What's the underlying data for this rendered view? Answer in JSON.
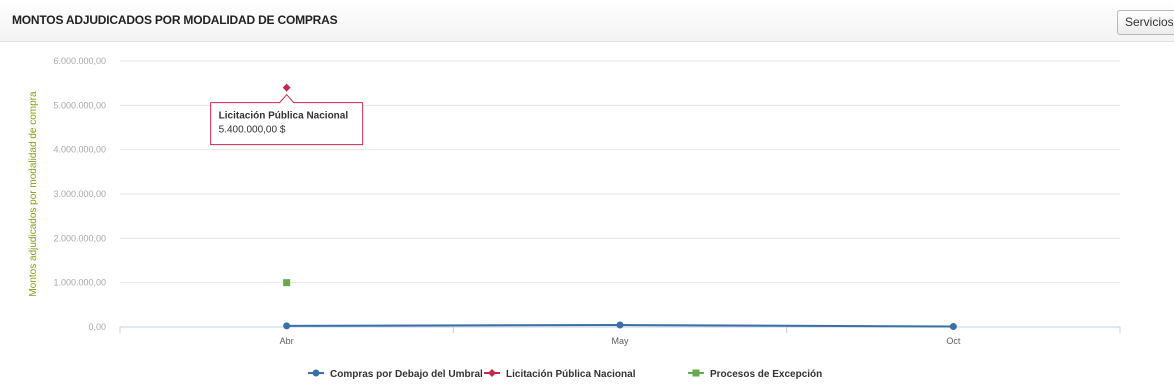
{
  "header": {
    "title": "MONTOS ADJUDICADOS POR MODALIDAD DE COMPRAS",
    "button_label": "Servicios"
  },
  "chart_data": {
    "type": "line",
    "title": "",
    "xlabel": "",
    "ylabel": "Montos adjudicados por modalidad de compra",
    "categories": [
      "Abr",
      "May",
      "Oct"
    ],
    "ylim": [
      0,
      6000000
    ],
    "y_ticks": [
      "0,00",
      "1.000.000,00",
      "2.000.000,00",
      "3.000.000,00",
      "4.000.000,00",
      "5.000.000,00",
      "6.000.000,00"
    ],
    "y_tick_values": [
      0,
      1000000,
      2000000,
      3000000,
      4000000,
      5000000,
      6000000
    ],
    "grid": true,
    "legend_position": "bottom",
    "series": [
      {
        "name": "Compras por Debajo del Umbral",
        "color": "#3b6fa8",
        "marker": "circle",
        "values": [
          25000,
          45000,
          10000
        ]
      },
      {
        "name": "Licitación Pública Nacional",
        "color": "#c8284f",
        "marker": "diamond",
        "values": [
          5400000,
          null,
          null
        ]
      },
      {
        "name": "Procesos de Excepción",
        "color": "#6aa84f",
        "marker": "square",
        "values": [
          1000000,
          null,
          null
        ]
      }
    ],
    "tooltip": {
      "title": "Licitación Pública Nacional",
      "value": "5.400.000,00 $",
      "category": "Abr"
    }
  }
}
